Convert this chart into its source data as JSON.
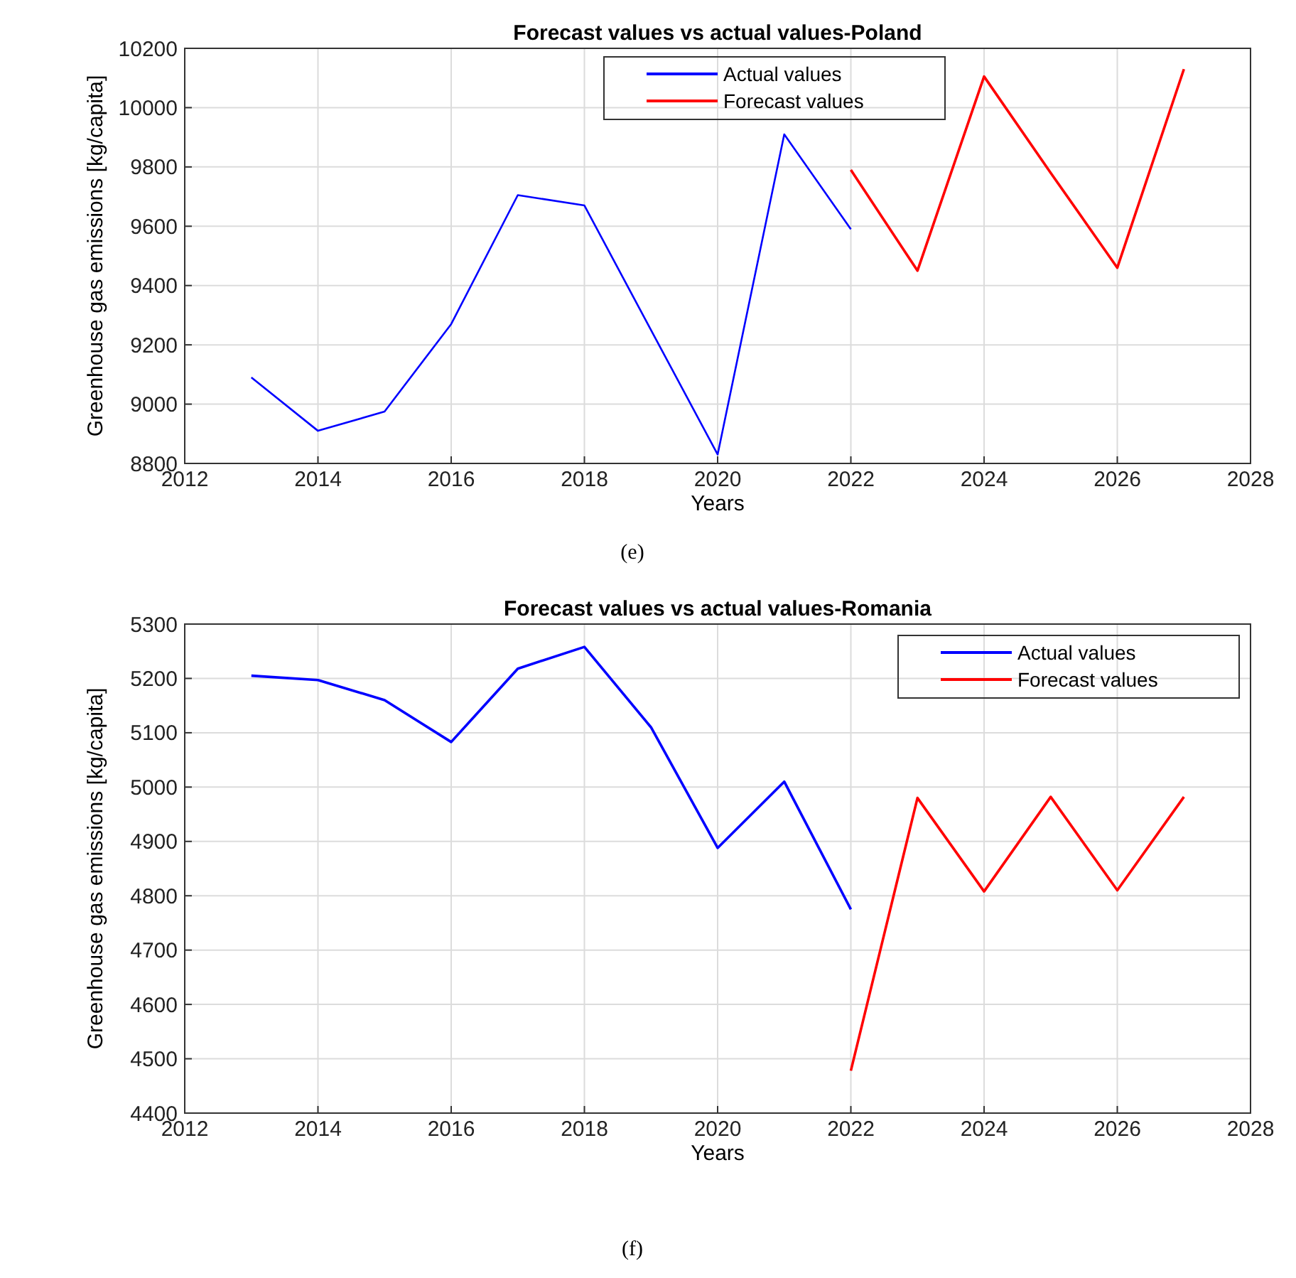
{
  "chart_data": [
    {
      "type": "line",
      "title": "Forecast values vs actual values-Poland",
      "xlabel": "Years",
      "ylabel": "Greenhouse gas emissions [kg/capita]",
      "annotations": [
        "(e)"
      ],
      "grid": true,
      "legend": "top",
      "xlim": [
        2012,
        2028
      ],
      "xticks": [
        2012,
        2014,
        2016,
        2018,
        2020,
        2022,
        2024,
        2026,
        2028
      ],
      "ylim": [
        8800,
        10200
      ],
      "yticks": [
        8800,
        9000,
        9200,
        9400,
        9600,
        9800,
        10000,
        10200
      ],
      "series": [
        {
          "name": "Actual values",
          "color": "#0000ff",
          "x": [
            2013,
            2014,
            2015,
            2016,
            2017,
            2018,
            2019,
            2020,
            2021,
            2022
          ],
          "values": [
            9090,
            8910,
            8975,
            9270,
            9705,
            9670,
            9250,
            8830,
            9910,
            9590
          ]
        },
        {
          "name": "Forecast values",
          "color": "#ff0000",
          "x": [
            2022,
            2023,
            2024,
            2025,
            2026,
            2027
          ],
          "values": [
            9790,
            9450,
            10105,
            9780,
            9460,
            10130
          ]
        }
      ]
    },
    {
      "type": "line",
      "title": "Forecast values vs actual values-Romania",
      "xlabel": "Years",
      "ylabel": "Greenhouse gas emissions [kg/capita]",
      "annotations": [
        "(f)"
      ],
      "grid": true,
      "legend": "top right",
      "xlim": [
        2012,
        2028
      ],
      "xticks": [
        2012,
        2014,
        2016,
        2018,
        2020,
        2022,
        2024,
        2026,
        2028
      ],
      "ylim": [
        4400,
        5300
      ],
      "yticks": [
        4400,
        4500,
        4600,
        4700,
        4800,
        4900,
        5000,
        5100,
        5200,
        5300
      ],
      "series": [
        {
          "name": "Actual values",
          "color": "#0000ff",
          "x": [
            2013,
            2014,
            2015,
            2016,
            2017,
            2018,
            2019,
            2020,
            2021,
            2022
          ],
          "values": [
            5205,
            5197,
            5160,
            5083,
            5218,
            5258,
            5110,
            4888,
            5010,
            4775
          ]
        },
        {
          "name": "Forecast values",
          "color": "#ff0000",
          "x": [
            2022,
            2023,
            2024,
            2025,
            2026,
            2027
          ],
          "values": [
            4478,
            4980,
            4808,
            4982,
            4810,
            4982
          ]
        }
      ]
    }
  ]
}
